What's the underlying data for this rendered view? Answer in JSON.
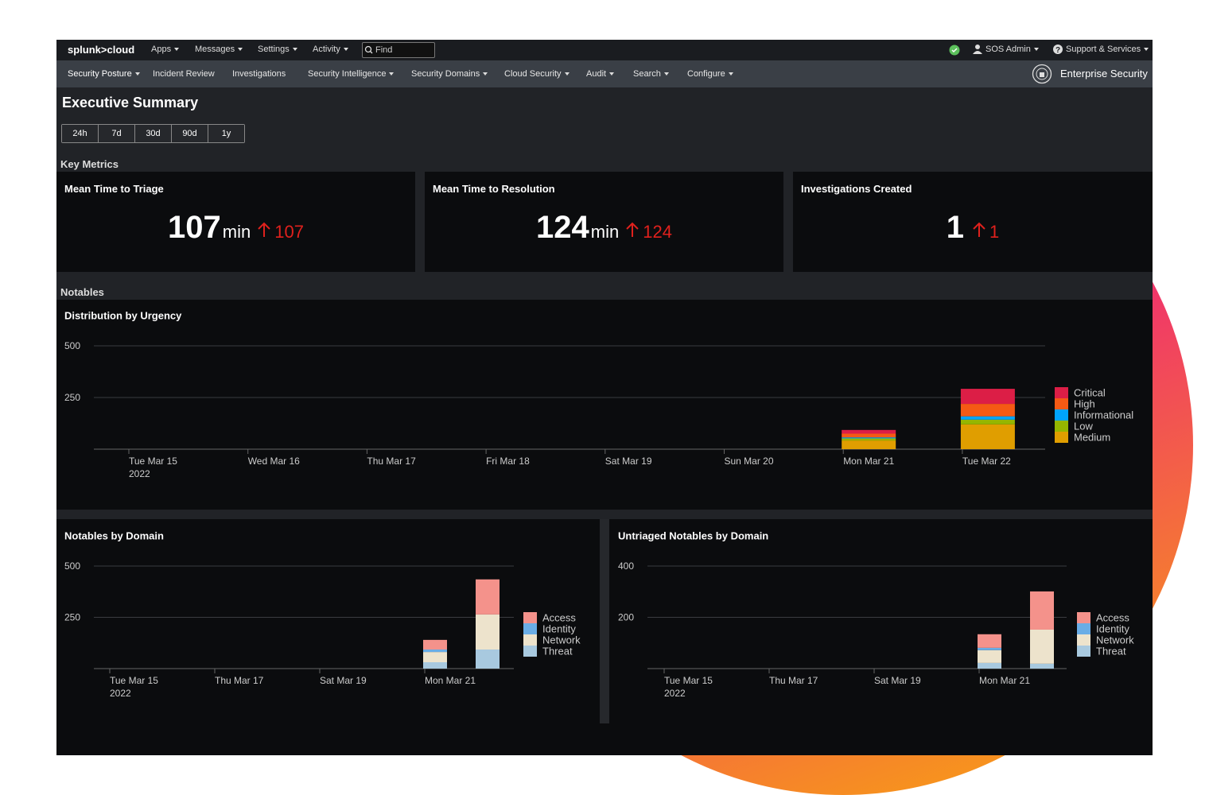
{
  "top_nav": {
    "logo": "splunk>cloud",
    "menus": [
      "Apps",
      "Messages",
      "Settings",
      "Activity"
    ],
    "search_placeholder": "Find",
    "user": "SOS Admin",
    "support": "Support & Services"
  },
  "app_nav": {
    "items": [
      "Security Posture",
      "Incident Review",
      "Investigations",
      "Security Intelligence",
      "Security Domains",
      "Cloud Security",
      "Audit",
      "Search",
      "Configure"
    ],
    "app_name": "Enterprise Security"
  },
  "page_title": "Executive Summary",
  "time_buttons": [
    "24h",
    "7d",
    "30d",
    "90d",
    "1y"
  ],
  "sections": {
    "key_metrics": "Key Metrics",
    "notables": "Notables"
  },
  "metrics": [
    {
      "title": "Mean Time to Triage",
      "value": 107,
      "unit": "min",
      "delta": 107
    },
    {
      "title": "Mean Time to Resolution",
      "value": 124,
      "unit": "min",
      "delta": 124
    },
    {
      "title": "Investigations Created",
      "value": 1,
      "delta": 1
    }
  ],
  "chart_data": [
    {
      "type": "bar",
      "stacked": true,
      "title": "Distribution by Urgency",
      "categories": [
        "Tue Mar 15",
        "Wed Mar 16",
        "Thu Mar 17",
        "Fri Mar 18",
        "Sat Mar 19",
        "Sun Mar 20",
        "Mon Mar 21",
        "Tue Mar 22"
      ],
      "year": "2022",
      "ylim": [
        0,
        500
      ],
      "yticks": [
        250,
        500
      ],
      "grid": true,
      "legend": "right",
      "series": [
        {
          "name": "Critical",
          "color": "#dc1e46",
          "values": [
            0,
            0,
            0,
            0,
            0,
            0,
            18,
            73
          ]
        },
        {
          "name": "High",
          "color": "#f55a14",
          "values": [
            0,
            0,
            0,
            0,
            0,
            0,
            18,
            60
          ]
        },
        {
          "name": "Informational",
          "color": "#00a4fd",
          "values": [
            0,
            0,
            0,
            0,
            0,
            0,
            5,
            16
          ]
        },
        {
          "name": "Low",
          "color": "#95b600",
          "values": [
            0,
            0,
            0,
            0,
            0,
            0,
            10,
            23
          ]
        },
        {
          "name": "Medium",
          "color": "#e09e00",
          "values": [
            0,
            0,
            0,
            0,
            0,
            0,
            42,
            120
          ]
        }
      ]
    },
    {
      "type": "bar",
      "stacked": true,
      "title": "Notables by Domain",
      "categories": [
        "Tue Mar 15",
        null,
        "Thu Mar 17",
        null,
        "Sat Mar 19",
        null,
        "Mon Mar 21",
        null
      ],
      "year": "2022",
      "ylim": [
        0,
        500
      ],
      "yticks": [
        250,
        500
      ],
      "grid": true,
      "legend": "right",
      "series": [
        {
          "name": "Access",
          "color": "#f4928b",
          "values": [
            0,
            0,
            0,
            0,
            0,
            0,
            47,
            171
          ]
        },
        {
          "name": "Identity",
          "color": "#6aade6",
          "values": [
            0,
            0,
            0,
            0,
            0,
            0,
            12,
            0
          ]
        },
        {
          "name": "Network",
          "color": "#ede3cc",
          "values": [
            0,
            0,
            0,
            0,
            0,
            0,
            50,
            171
          ]
        },
        {
          "name": "Threat",
          "color": "#a8c9df",
          "values": [
            0,
            0,
            0,
            0,
            0,
            0,
            31,
            93
          ]
        }
      ]
    },
    {
      "type": "bar",
      "stacked": true,
      "title": "Untriaged Notables by Domain",
      "categories": [
        "Tue Mar 15",
        null,
        "Thu Mar 17",
        null,
        "Sat Mar 19",
        null,
        "Mon Mar 21",
        null
      ],
      "year": "2022",
      "ylim": [
        0,
        400
      ],
      "yticks": [
        200,
        400
      ],
      "grid": true,
      "legend": "right",
      "series": [
        {
          "name": "Access",
          "color": "#f4928b",
          "values": [
            0,
            0,
            0,
            0,
            0,
            0,
            53,
            149
          ]
        },
        {
          "name": "Identity",
          "color": "#6aade6",
          "values": [
            0,
            0,
            0,
            0,
            0,
            0,
            9,
            0
          ]
        },
        {
          "name": "Network",
          "color": "#ede3cc",
          "values": [
            0,
            0,
            0,
            0,
            0,
            0,
            50,
            133
          ]
        },
        {
          "name": "Threat",
          "color": "#a8c9df",
          "values": [
            0,
            0,
            0,
            0,
            0,
            0,
            22,
            19
          ]
        }
      ]
    }
  ]
}
